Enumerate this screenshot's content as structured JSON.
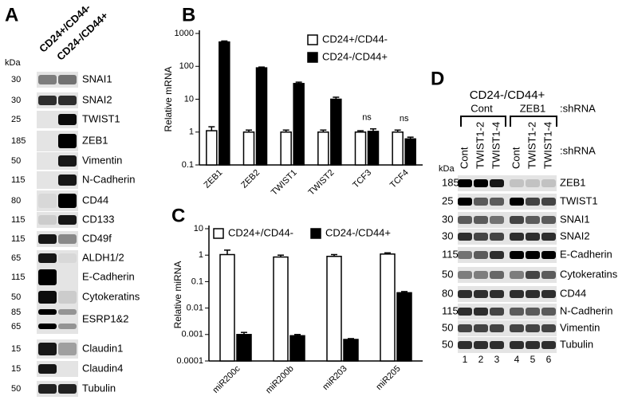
{
  "panel_a": {
    "label": "A",
    "kda_header": "kDa",
    "lanes": [
      "CD24+/CD44-",
      "CD24-/CD44+"
    ],
    "rows": [
      {
        "kda": [
          30
        ],
        "name": "SNAI1"
      },
      {
        "kda": [
          30
        ],
        "name": "SNAI2"
      },
      {
        "kda": [
          25
        ],
        "name": "TWIST1"
      },
      {
        "kda": [
          185
        ],
        "name": "ZEB1"
      },
      {
        "kda": [
          50
        ],
        "name": "Vimentin"
      },
      {
        "kda": [
          115
        ],
        "name": "N-Cadherin"
      },
      {
        "kda": [
          80
        ],
        "name": "CD44"
      },
      {
        "kda": [
          115
        ],
        "name": "CD133"
      },
      {
        "kda": [
          115
        ],
        "name": "CD49f"
      },
      {
        "kda": [
          65
        ],
        "name": "ALDH1/2"
      },
      {
        "kda": [
          115
        ],
        "name": "E-Cadherin"
      },
      {
        "kda": [
          50
        ],
        "name": "Cytokeratins"
      },
      {
        "kda": [
          85,
          65
        ],
        "name": "ESRP1&2"
      },
      {
        "kda": [
          15
        ],
        "name": "Claudin1"
      },
      {
        "kda": [
          15
        ],
        "name": "Claudin4"
      },
      {
        "kda": [
          50
        ],
        "name": "Tubulin"
      }
    ]
  },
  "chart_data": [
    {
      "type": "bar",
      "label": "B",
      "ylabel": "Relative mRNA",
      "log_scale": true,
      "legend": "upper right",
      "categories": [
        "ZEB1",
        "ZEB2",
        "TWIST1",
        "TWIST2",
        "TCF3",
        "TCF4"
      ],
      "series": [
        {
          "name": "CD24+/CD44-",
          "color": "#ffffff",
          "values": [
            1.1,
            1,
            1,
            1,
            1,
            1
          ],
          "errors": [
            0.35,
            0.15,
            0.15,
            0.15,
            0.1,
            0.15
          ]
        },
        {
          "name": "CD24-/CD44+",
          "color": "#000000",
          "values": [
            550,
            90,
            30,
            10,
            1.05,
            0.62
          ],
          "errors": [
            40,
            5,
            3,
            1.5,
            0.2,
            0.08
          ]
        }
      ],
      "ylim": [
        0.1,
        1000
      ],
      "yticks": [
        0.1,
        1,
        10,
        100,
        1000
      ],
      "annotations": [
        {
          "text": "ns",
          "category": "TCF3"
        },
        {
          "text": "ns",
          "category": "TCF4"
        }
      ]
    },
    {
      "type": "bar",
      "label": "C",
      "ylabel": "Relative miRNA",
      "log_scale": true,
      "legend": "top",
      "categories": [
        "miR200c",
        "miR200b",
        "miR203",
        "miR205"
      ],
      "series": [
        {
          "name": "CD24+/CD44-",
          "color": "#ffffff",
          "values": [
            1.05,
            0.85,
            0.9,
            1.1
          ],
          "errors": [
            0.5,
            0.15,
            0.15,
            0.12
          ]
        },
        {
          "name": "CD24-/CD44+",
          "color": "#000000",
          "values": [
            0.001,
            0.0009,
            0.00065,
            0.038
          ],
          "errors": [
            0.0002,
            0.0001,
            5e-05,
            0.004
          ]
        }
      ],
      "ylim": [
        0.0001,
        10
      ],
      "yticks": [
        0.0001,
        0.001,
        0.01,
        0.1,
        1,
        10
      ]
    }
  ],
  "panel_d": {
    "label": "D",
    "title": "CD24-/CD44+",
    "groups": [
      "Cont",
      "ZEB1"
    ],
    "shrna_top": ":shRNA",
    "shrna_lanes": ":shRNA",
    "kda_header": "kDa",
    "lanes": [
      "Cont",
      "TWIST1-2",
      "TWIST1-4",
      "Cont",
      "TWIST1-2",
      "TWIST1-4"
    ],
    "lane_numbers": [
      1,
      2,
      3,
      4,
      5,
      6
    ],
    "rows": [
      {
        "kda": 185,
        "name": "ZEB1"
      },
      {
        "kda": 25,
        "name": "TWIST1"
      },
      {
        "kda": 30,
        "name": "SNAI1"
      },
      {
        "kda": 30,
        "name": "SNAI2"
      },
      {
        "kda": 115,
        "name": "E-Cadherin"
      },
      {
        "kda": 50,
        "name": "Cytokeratins"
      },
      {
        "kda": 80,
        "name": "CD44"
      },
      {
        "kda": 115,
        "name": "N-Cadherin"
      },
      {
        "kda": 50,
        "name": "Vimentin"
      },
      {
        "kda": 50,
        "name": "Tubulin"
      }
    ]
  }
}
